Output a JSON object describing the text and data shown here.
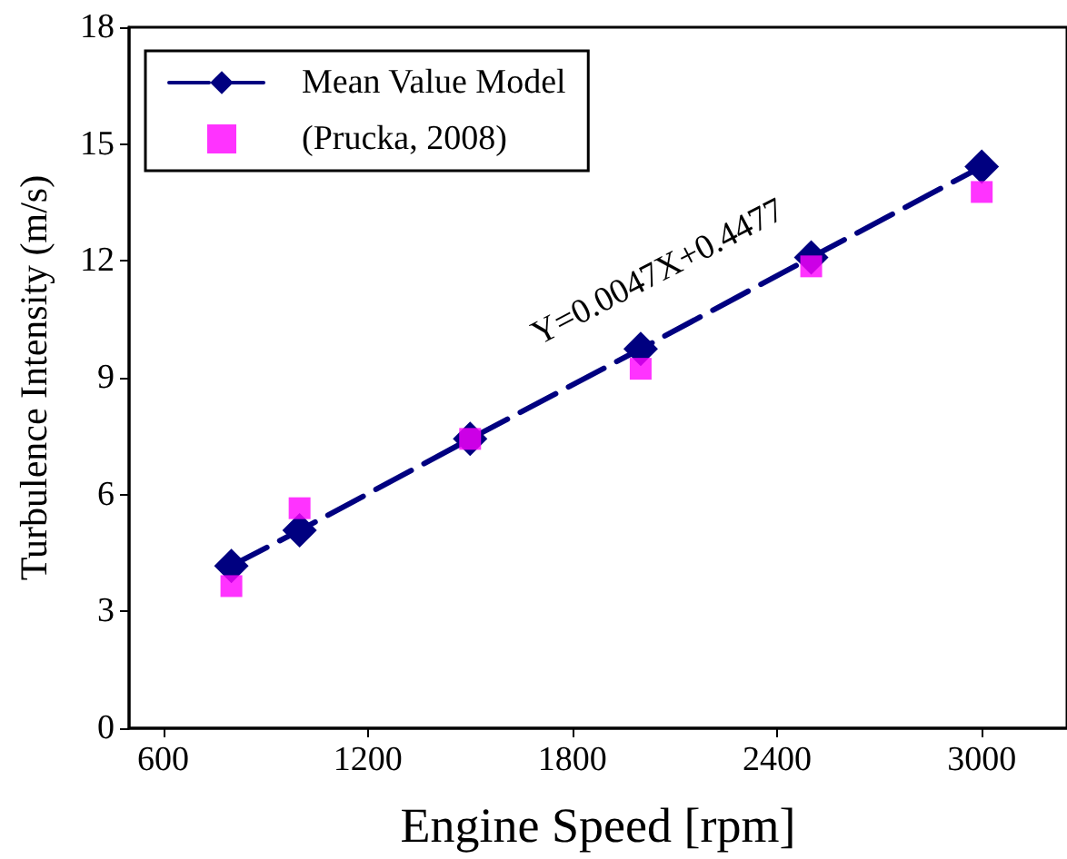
{
  "chart_data": {
    "type": "line",
    "xlabel": "Engine Speed [rpm]",
    "ylabel": "Turbulence Intensity (m/s)",
    "x": [
      800,
      1000,
      1500,
      2000,
      2500,
      3000
    ],
    "series": [
      {
        "name": "Mean Value Model",
        "color": "#000080",
        "marker": "diamond",
        "line_style": "dashed",
        "values": [
          4.17,
          5.08,
          7.43,
          9.74,
          12.09,
          14.42
        ]
      },
      {
        "name": "(Prucka, 2008)",
        "color": "#ff00ff",
        "type": "scatter",
        "marker": "square",
        "values": [
          3.65,
          5.65,
          7.43,
          9.23,
          11.86,
          13.77
        ]
      }
    ],
    "xlim": [
      500,
      3250
    ],
    "xticks": [
      600,
      1200,
      1800,
      2400,
      3000
    ],
    "ylim": [
      0,
      18
    ],
    "yticks": [
      0,
      3,
      6,
      9,
      12,
      15,
      18
    ],
    "annotations": [
      "Y=0.0047X+0.4477"
    ],
    "grid": false,
    "legend": "top left"
  }
}
